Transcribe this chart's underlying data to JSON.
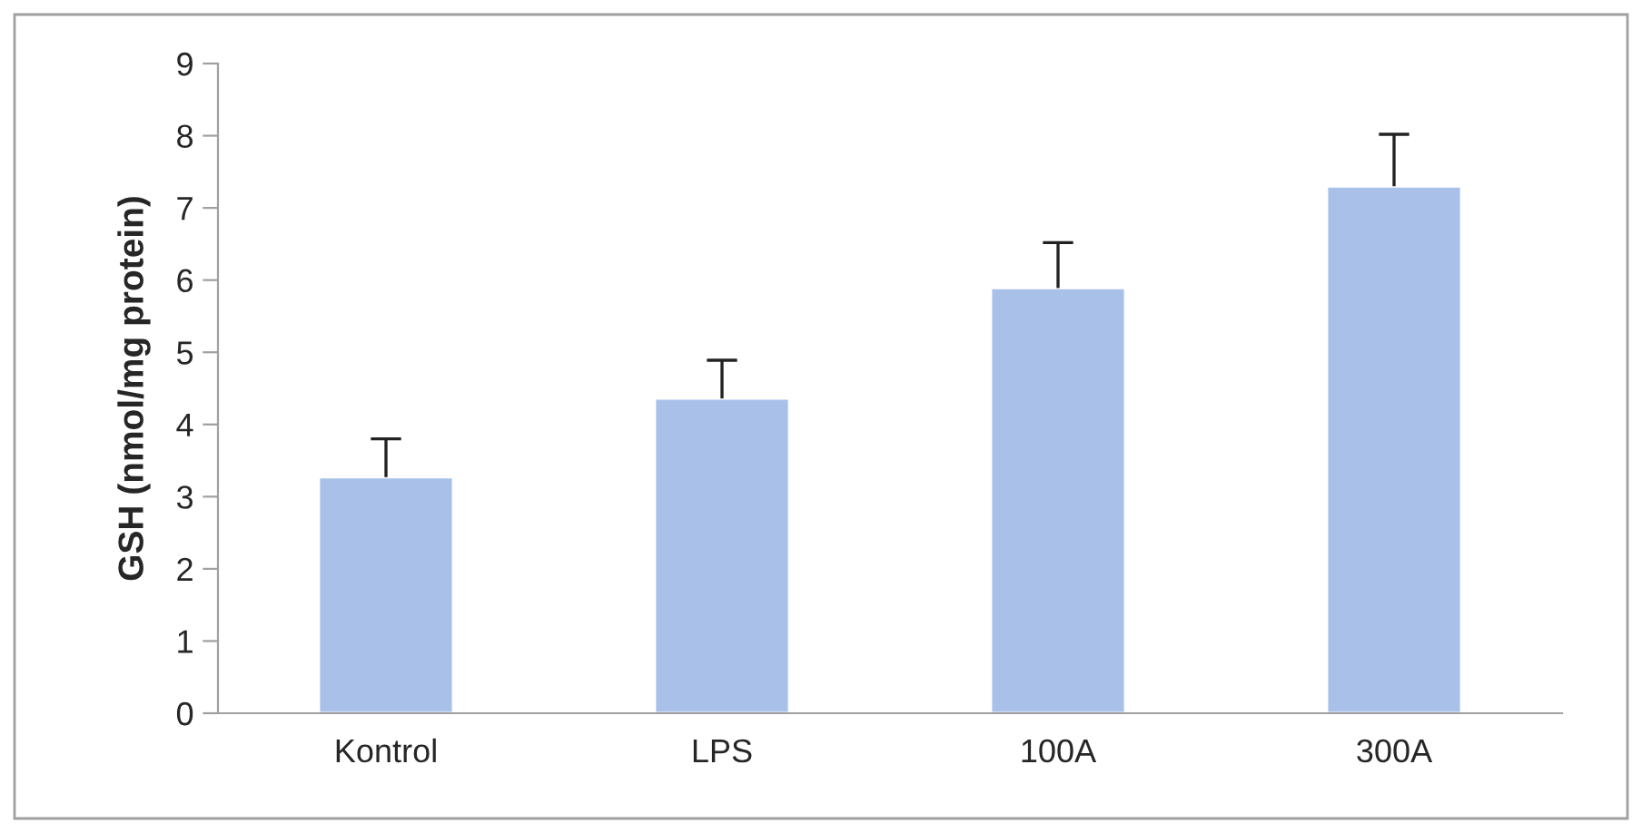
{
  "chart_data": {
    "type": "bar",
    "ylabel": "GSH (nmol/mg protein)",
    "categories": [
      "Kontrol",
      "LPS",
      "100A",
      "300A"
    ],
    "values": [
      3.27,
      4.36,
      5.89,
      7.3
    ],
    "errors": [
      [
        3.27,
        3.8
      ],
      [
        4.36,
        4.89
      ],
      [
        5.89,
        6.52
      ],
      [
        7.3,
        8.02
      ]
    ],
    "color": "#a9c1e8",
    "ylim": [
      0,
      9
    ],
    "yticks": [
      0,
      1,
      2,
      3,
      4,
      5,
      6,
      7,
      8,
      9
    ],
    "grid": false
  }
}
